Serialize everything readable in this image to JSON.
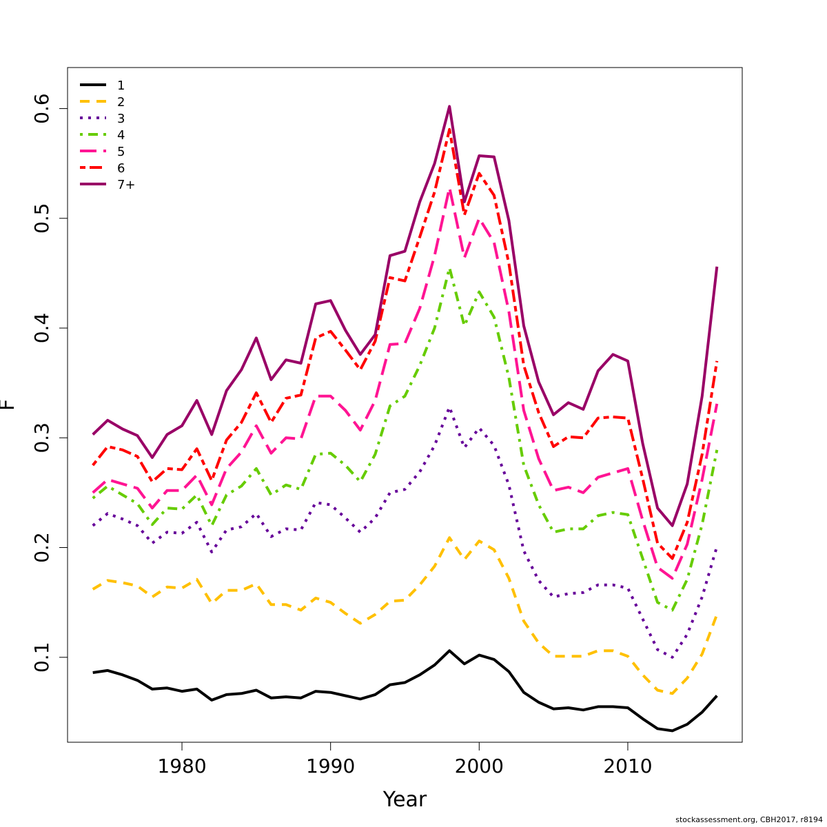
{
  "chart_data": {
    "type": "line",
    "xlabel": "Year",
    "ylabel": "F",
    "xlim": [
      1972.3,
      2017.7
    ],
    "ylim": [
      0.0226,
      0.6374
    ],
    "xticks": [
      1980,
      1990,
      2000,
      2010
    ],
    "yticks": [
      0.1,
      0.2,
      0.3,
      0.4,
      0.5,
      0.6
    ],
    "legend_position": "top-left",
    "grid": false,
    "x": [
      1974,
      1975,
      1976,
      1977,
      1978,
      1979,
      1980,
      1981,
      1982,
      1983,
      1984,
      1985,
      1986,
      1987,
      1988,
      1989,
      1990,
      1991,
      1992,
      1993,
      1994,
      1995,
      1996,
      1997,
      1998,
      1999,
      2000,
      2001,
      2002,
      2003,
      2004,
      2005,
      2006,
      2007,
      2008,
      2009,
      2010,
      2011,
      2012,
      2013,
      2014,
      2015,
      2016
    ],
    "series": [
      {
        "name": "1",
        "color": "#000000",
        "dash": "solid",
        "values": [
          0.086,
          0.088,
          0.084,
          0.079,
          0.071,
          0.072,
          0.069,
          0.071,
          0.061,
          0.066,
          0.067,
          0.07,
          0.063,
          0.064,
          0.063,
          0.069,
          0.068,
          0.065,
          0.062,
          0.066,
          0.075,
          0.077,
          0.084,
          0.093,
          0.106,
          0.094,
          0.102,
          0.098,
          0.087,
          0.068,
          0.059,
          0.053,
          0.054,
          0.052,
          0.055,
          0.055,
          0.054,
          0.044,
          0.035,
          0.033,
          0.039,
          0.05,
          0.065
        ]
      },
      {
        "name": "2",
        "color": "#FFC000",
        "dash": "dashed",
        "values": [
          0.162,
          0.17,
          0.168,
          0.165,
          0.155,
          0.164,
          0.163,
          0.171,
          0.149,
          0.161,
          0.161,
          0.167,
          0.148,
          0.148,
          0.143,
          0.154,
          0.15,
          0.14,
          0.131,
          0.139,
          0.151,
          0.152,
          0.166,
          0.183,
          0.209,
          0.189,
          0.206,
          0.198,
          0.172,
          0.133,
          0.113,
          0.101,
          0.101,
          0.101,
          0.106,
          0.106,
          0.101,
          0.084,
          0.07,
          0.067,
          0.081,
          0.103,
          0.139
        ]
      },
      {
        "name": "3",
        "color": "#660099",
        "dash": "dotted",
        "values": [
          0.22,
          0.231,
          0.226,
          0.22,
          0.204,
          0.214,
          0.213,
          0.223,
          0.196,
          0.216,
          0.219,
          0.231,
          0.21,
          0.217,
          0.216,
          0.241,
          0.239,
          0.227,
          0.214,
          0.227,
          0.25,
          0.253,
          0.269,
          0.293,
          0.328,
          0.291,
          0.309,
          0.293,
          0.257,
          0.197,
          0.17,
          0.155,
          0.158,
          0.159,
          0.166,
          0.166,
          0.163,
          0.135,
          0.107,
          0.1,
          0.121,
          0.155,
          0.201
        ]
      },
      {
        "name": "4",
        "color": "#66CC00",
        "dash": "dotdash",
        "values": [
          0.245,
          0.256,
          0.248,
          0.24,
          0.221,
          0.236,
          0.235,
          0.248,
          0.22,
          0.248,
          0.256,
          0.272,
          0.248,
          0.257,
          0.253,
          0.285,
          0.286,
          0.275,
          0.26,
          0.285,
          0.329,
          0.338,
          0.366,
          0.4,
          0.455,
          0.402,
          0.433,
          0.41,
          0.355,
          0.275,
          0.239,
          0.214,
          0.217,
          0.217,
          0.229,
          0.232,
          0.23,
          0.19,
          0.15,
          0.143,
          0.171,
          0.221,
          0.289
        ]
      },
      {
        "name": "5",
        "color": "#FF1493",
        "dash": "longdash",
        "values": [
          0.25,
          0.262,
          0.258,
          0.254,
          0.236,
          0.252,
          0.252,
          0.266,
          0.239,
          0.272,
          0.287,
          0.311,
          0.286,
          0.3,
          0.299,
          0.338,
          0.338,
          0.325,
          0.307,
          0.334,
          0.385,
          0.386,
          0.418,
          0.466,
          0.528,
          0.464,
          0.5,
          0.478,
          0.415,
          0.325,
          0.281,
          0.252,
          0.255,
          0.25,
          0.264,
          0.268,
          0.272,
          0.225,
          0.182,
          0.172,
          0.203,
          0.262,
          0.331
        ]
      },
      {
        "name": "6",
        "color": "#FF0000",
        "dash": "twodash",
        "values": [
          0.275,
          0.292,
          0.289,
          0.283,
          0.26,
          0.272,
          0.271,
          0.29,
          0.261,
          0.298,
          0.314,
          0.341,
          0.314,
          0.336,
          0.339,
          0.391,
          0.397,
          0.38,
          0.362,
          0.388,
          0.446,
          0.443,
          0.483,
          0.524,
          0.581,
          0.503,
          0.541,
          0.521,
          0.459,
          0.366,
          0.323,
          0.292,
          0.301,
          0.3,
          0.318,
          0.319,
          0.318,
          0.263,
          0.204,
          0.19,
          0.223,
          0.285,
          0.37
        ]
      },
      {
        "name": "7+",
        "color": "#990066",
        "dash": "solid",
        "values": [
          0.303,
          0.316,
          0.308,
          0.302,
          0.282,
          0.303,
          0.311,
          0.334,
          0.303,
          0.343,
          0.362,
          0.391,
          0.353,
          0.371,
          0.368,
          0.422,
          0.425,
          0.398,
          0.376,
          0.394,
          0.466,
          0.47,
          0.515,
          0.55,
          0.602,
          0.515,
          0.557,
          0.556,
          0.498,
          0.402,
          0.351,
          0.321,
          0.332,
          0.326,
          0.361,
          0.376,
          0.37,
          0.295,
          0.236,
          0.22,
          0.258,
          0.338,
          0.456
        ]
      }
    ]
  },
  "credit": "stockassessment.org, CBH2017, r8194"
}
